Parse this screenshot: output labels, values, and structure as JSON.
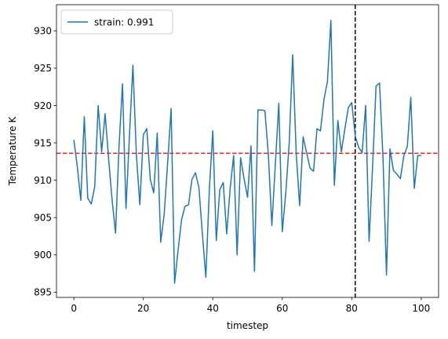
{
  "chart_data": {
    "type": "line",
    "title": "",
    "xlabel": "timestep",
    "ylabel": "Temperature K",
    "xlim": [
      -5,
      105
    ],
    "ylim": [
      894.3,
      933.5
    ],
    "xticks": [
      0,
      20,
      40,
      60,
      80,
      100
    ],
    "yticks": [
      895,
      900,
      905,
      910,
      915,
      920,
      925,
      930
    ],
    "grid": false,
    "legend_position": "top-left",
    "series": [
      {
        "name": "strain: 0.991",
        "color": "#1f77b4",
        "x": [
          0,
          1,
          2,
          3,
          4,
          5,
          6,
          7,
          8,
          9,
          10,
          11,
          12,
          13,
          14,
          15,
          16,
          17,
          18,
          19,
          20,
          21,
          22,
          23,
          24,
          25,
          26,
          27,
          28,
          29,
          30,
          31,
          32,
          33,
          34,
          35,
          36,
          37,
          38,
          39,
          40,
          41,
          42,
          43,
          44,
          45,
          46,
          47,
          48,
          49,
          50,
          51,
          52,
          53,
          54,
          55,
          56,
          57,
          58,
          59,
          60,
          61,
          62,
          63,
          64,
          65,
          66,
          67,
          68,
          69,
          70,
          71,
          72,
          73,
          74,
          75,
          76,
          77,
          78,
          79,
          80,
          81,
          82,
          83,
          84,
          85,
          86,
          87,
          88,
          89,
          90,
          91,
          92,
          93,
          94,
          95,
          96,
          97,
          98,
          99,
          100
        ],
        "values": [
          915.4,
          911.8,
          907.3,
          918.5,
          907.6,
          906.8,
          909.1,
          920.0,
          913.8,
          918.9,
          912.9,
          907.4,
          902.9,
          914.5,
          922.9,
          906.2,
          915.9,
          925.4,
          913.4,
          906.7,
          916.1,
          916.9,
          910.1,
          908.3,
          916.3,
          901.7,
          905.4,
          912.3,
          919.6,
          896.2,
          900.6,
          904.7,
          906.5,
          906.7,
          910.1,
          911.0,
          909.0,
          902.8,
          897.0,
          908.7,
          916.6,
          901.9,
          908.7,
          909.7,
          902.8,
          908.9,
          913.3,
          900.0,
          913.0,
          910.2,
          907.7,
          914.6,
          897.8,
          919.4,
          919.4,
          919.3,
          913.4,
          903.9,
          912.1,
          920.3,
          903.1,
          908.2,
          915.0,
          926.8,
          913.7,
          906.6,
          915.8,
          913.7,
          911.6,
          911.2,
          916.9,
          916.6,
          920.8,
          923.2,
          931.4,
          909.3,
          918.0,
          913.8,
          916.8,
          919.7,
          920.4,
          915.9,
          914.4,
          913.7,
          920.0,
          901.8,
          911.8,
          922.6,
          923.0,
          913.0,
          897.3,
          914.2,
          911.3,
          910.8,
          910.2,
          913.3,
          914.5,
          921.1,
          908.9,
          913.3,
          913.3
        ]
      }
    ],
    "reference_lines": [
      {
        "orientation": "horizontal",
        "value": 913.6,
        "color": "#d62728",
        "style": "dashed"
      },
      {
        "orientation": "vertical",
        "value": 81,
        "color": "#000000",
        "style": "dashed"
      }
    ]
  }
}
